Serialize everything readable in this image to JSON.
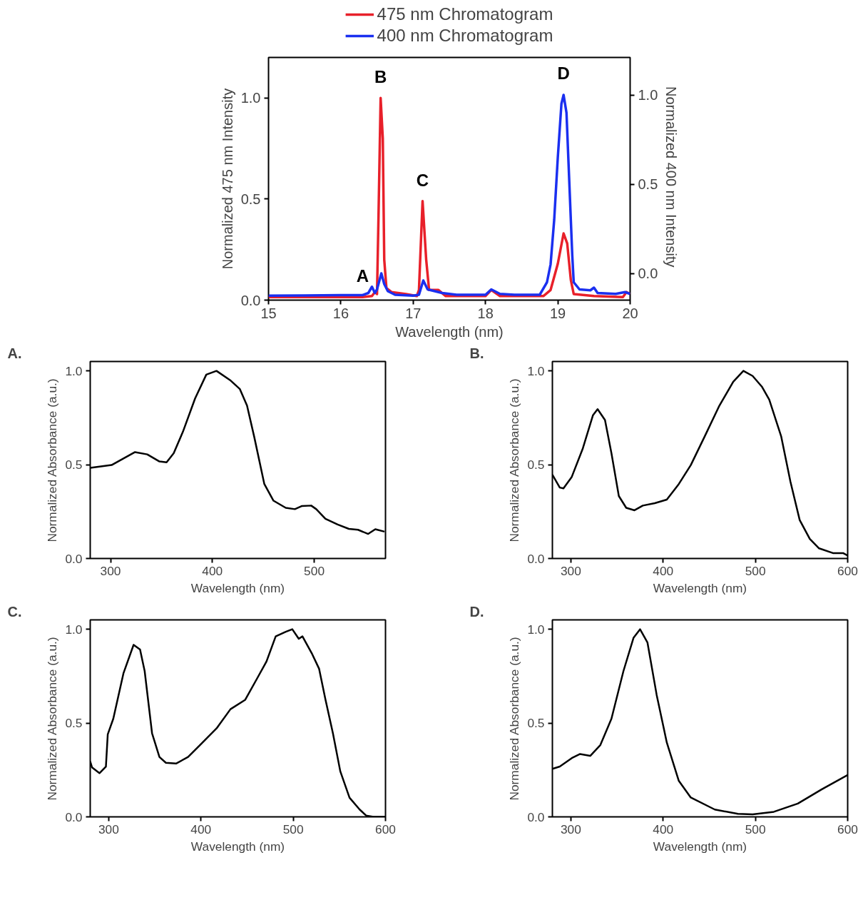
{
  "chart_data": [
    {
      "type": "line",
      "xlabel": "Wavelength (nm)",
      "ylabel": "Normalized 475 nm Intensity",
      "y2label": "Normalized  400 nm Intensity",
      "legend": "top",
      "grid": false,
      "line_style": "solid",
      "marker": "none",
      "xlim": [
        15,
        20
      ],
      "xticks": [
        15,
        16,
        17,
        18,
        19,
        20
      ],
      "ylim": [
        0,
        1.2
      ],
      "yticks": [
        {
          "value": 0,
          "label": "0.0"
        },
        {
          "value": 0.5,
          "label": "0.5"
        },
        {
          "value": 1,
          "label": "1.0"
        }
      ],
      "y2lim": [
        -0.15,
        1.21
      ],
      "y2ticks": [
        {
          "value": 0,
          "label": "0.0"
        },
        {
          "value": 0.5,
          "label": "0.5"
        },
        {
          "value": 1,
          "label": "1.0"
        }
      ],
      "annotations": [
        {
          "text": "A",
          "x": 16.3,
          "y": 0.015
        },
        {
          "text": "B",
          "x": 16.55,
          "y": 1.0
        },
        {
          "text": "C",
          "x": 17.13,
          "y": 0.49
        },
        {
          "text": "D",
          "x": 19.08,
          "y": 1.02
        }
      ],
      "series": [
        {
          "name": "475 nm Chromatogram",
          "color": "#e8202a",
          "x": [
            15,
            16.3,
            16.43,
            16.47,
            16.5,
            16.52,
            16.55,
            16.58,
            16.6,
            16.63,
            16.7,
            16.9,
            17.05,
            17.08,
            17.13,
            17.18,
            17.22,
            17.35,
            17.45,
            18.0,
            18.08,
            18.2,
            18.8,
            18.9,
            19.0,
            19.08,
            19.13,
            19.18,
            19.22,
            19.5,
            19.9,
            19.95,
            20
          ],
          "values": [
            0.015,
            0.015,
            0.02,
            0.04,
            0.03,
            0.4,
            1.0,
            0.8,
            0.2,
            0.06,
            0.04,
            0.03,
            0.02,
            0.05,
            0.49,
            0.2,
            0.05,
            0.05,
            0.02,
            0.02,
            0.05,
            0.02,
            0.02,
            0.05,
            0.18,
            0.33,
            0.28,
            0.1,
            0.03,
            0.02,
            0.015,
            0.04,
            0.03
          ]
        },
        {
          "name": "400 nm Chromatogram",
          "color": "#1a2ff0",
          "axis": "y2",
          "x": [
            15,
            15.5,
            16.0,
            16.3,
            16.38,
            16.43,
            16.47,
            16.5,
            16.56,
            16.6,
            16.65,
            16.75,
            17.0,
            17.08,
            17.14,
            17.2,
            17.3,
            17.4,
            17.6,
            18.0,
            18.08,
            18.2,
            18.4,
            18.75,
            18.85,
            18.9,
            18.95,
            19.0,
            19.05,
            19.08,
            19.12,
            19.15,
            19.2,
            19.22,
            19.3,
            19.45,
            19.5,
            19.55,
            19.8,
            19.93,
            20
          ],
          "values": [
            -0.125,
            -0.124,
            -0.122,
            -0.122,
            -0.11,
            -0.075,
            -0.11,
            -0.09,
            0.0,
            -0.06,
            -0.1,
            -0.12,
            -0.125,
            -0.12,
            -0.04,
            -0.09,
            -0.1,
            -0.11,
            -0.12,
            -0.12,
            -0.09,
            -0.115,
            -0.12,
            -0.12,
            -0.05,
            0.05,
            0.3,
            0.65,
            0.95,
            1.0,
            0.9,
            0.6,
            0.1,
            -0.05,
            -0.09,
            -0.095,
            -0.08,
            -0.11,
            -0.115,
            -0.105,
            -0.115
          ]
        }
      ]
    },
    {
      "type": "line",
      "xlabel": "Wavelength (nm)",
      "ylabel": "Normalized Absorbance (a.u.)",
      "annotations": [
        "A."
      ],
      "grid": false,
      "marker": "none",
      "line_style": "solid",
      "xlim": [
        280,
        570
      ],
      "xticks": [
        300,
        400,
        500
      ],
      "ylim": [
        0,
        1.05
      ],
      "yticks": [
        {
          "value": 0,
          "label": "0.0"
        },
        {
          "value": 0.5,
          "label": "0.5"
        },
        {
          "value": 1,
          "label": "1.0"
        }
      ],
      "series": [
        {
          "color": "#000000",
          "x": [
            280,
            301,
            324,
            336,
            348,
            355,
            362,
            371,
            383,
            394,
            404,
            418,
            427,
            434,
            441,
            451,
            460,
            472,
            481,
            488,
            497,
            502,
            511,
            523,
            534,
            543,
            553,
            560,
            569
          ],
          "values": [
            0.483,
            0.498,
            0.567,
            0.555,
            0.517,
            0.513,
            0.561,
            0.675,
            0.853,
            0.98,
            1.0,
            0.948,
            0.903,
            0.815,
            0.65,
            0.397,
            0.308,
            0.27,
            0.263,
            0.28,
            0.282,
            0.263,
            0.212,
            0.181,
            0.158,
            0.153,
            0.131,
            0.156,
            0.143
          ]
        }
      ]
    },
    {
      "type": "line",
      "xlabel": "Wavelength (nm)",
      "ylabel": "Normalized Absorbance (a.u.)",
      "annotations": [
        "B."
      ],
      "grid": false,
      "marker": "none",
      "line_style": "solid",
      "xlim": [
        280,
        600
      ],
      "xticks": [
        300,
        400,
        500,
        600
      ],
      "ylim": [
        0,
        1.05
      ],
      "yticks": [
        {
          "value": 0,
          "label": "0.0"
        },
        {
          "value": 0.5,
          "label": "0.5"
        },
        {
          "value": 1,
          "label": "1.0"
        }
      ],
      "series": [
        {
          "color": "#000000",
          "x": [
            280,
            288,
            292,
            301,
            313,
            324,
            329,
            337,
            344,
            352,
            360,
            369,
            378,
            391,
            404,
            417,
            430,
            445,
            461,
            476,
            487,
            497,
            507,
            515,
            528,
            538,
            548,
            559,
            569,
            584,
            595,
            600
          ],
          "values": [
            0.447,
            0.378,
            0.374,
            0.435,
            0.587,
            0.764,
            0.796,
            0.738,
            0.561,
            0.333,
            0.27,
            0.257,
            0.282,
            0.295,
            0.314,
            0.397,
            0.498,
            0.65,
            0.815,
            0.942,
            1.0,
            0.973,
            0.916,
            0.847,
            0.65,
            0.409,
            0.205,
            0.104,
            0.054,
            0.029,
            0.029,
            0.016
          ]
        }
      ]
    },
    {
      "type": "line",
      "xlabel": "Wavelength (nm)",
      "ylabel": "Normalized Absorbance (a.u.)",
      "annotations": [
        "C."
      ],
      "grid": false,
      "marker": "none",
      "line_style": "solid",
      "xlim": [
        280,
        600
      ],
      "xticks": [
        300,
        400,
        500,
        600
      ],
      "ylim": [
        0,
        1.05
      ],
      "yticks": [
        {
          "value": 0,
          "label": "0.0"
        },
        {
          "value": 0.5,
          "label": "0.5"
        },
        {
          "value": 1,
          "label": "1.0"
        }
      ],
      "series": [
        {
          "color": "#000000",
          "x": [
            280,
            282,
            290,
            297,
            299,
            305,
            316,
            327,
            334,
            339,
            347,
            355,
            362,
            373,
            386,
            399,
            417,
            432,
            448,
            461,
            471,
            481,
            492,
            499,
            506,
            510,
            520,
            528,
            535,
            543,
            551,
            561,
            572,
            579,
            587,
            600
          ],
          "values": [
            0.295,
            0.263,
            0.233,
            0.268,
            0.44,
            0.523,
            0.765,
            0.917,
            0.892,
            0.777,
            0.446,
            0.319,
            0.288,
            0.284,
            0.319,
            0.383,
            0.472,
            0.574,
            0.624,
            0.739,
            0.828,
            0.962,
            0.987,
            1.0,
            0.949,
            0.962,
            0.873,
            0.79,
            0.624,
            0.446,
            0.243,
            0.102,
            0.039,
            0.007,
            0.0,
            0.0
          ]
        }
      ]
    },
    {
      "type": "line",
      "xlabel": "Wavelength (nm)",
      "ylabel": "Normalized Absorbance (a.u.)",
      "annotations": [
        "D."
      ],
      "grid": false,
      "marker": "none",
      "line_style": "solid",
      "xlim": [
        280,
        600
      ],
      "xticks": [
        300,
        400,
        500,
        600
      ],
      "ylim": [
        0,
        1.05
      ],
      "yticks": [
        {
          "value": 0,
          "label": "0.0"
        },
        {
          "value": 0.5,
          "label": "0.5"
        },
        {
          "value": 1,
          "label": "1.0"
        }
      ],
      "series": [
        {
          "color": "#000000",
          "x": [
            280,
            288,
            301,
            310,
            321,
            332,
            344,
            357,
            368,
            375,
            383,
            393,
            404,
            417,
            430,
            456,
            481,
            497,
            520,
            546,
            572,
            600
          ],
          "values": [
            0.256,
            0.268,
            0.313,
            0.335,
            0.325,
            0.383,
            0.523,
            0.777,
            0.955,
            1.0,
            0.93,
            0.65,
            0.396,
            0.192,
            0.103,
            0.039,
            0.016,
            0.013,
            0.027,
            0.071,
            0.147,
            0.223
          ]
        }
      ]
    }
  ]
}
